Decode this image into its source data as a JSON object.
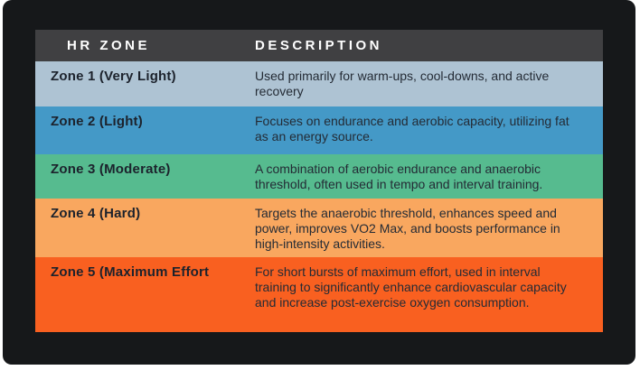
{
  "page": {
    "background_color": "#ffffff",
    "card_color": "#16181a"
  },
  "chart_data": {
    "type": "table",
    "title": "",
    "columns": [
      {
        "label": "HR ZONE"
      },
      {
        "label": "DESCRIPTION"
      }
    ],
    "header": {
      "background": "#404042",
      "text_color": "#ffffff"
    },
    "text_color": "#242b35",
    "rows": [
      {
        "zone": "Zone 1 (Very Light)",
        "description": "Used primarily for warm-ups, cool-downs, and active recovery",
        "color": "#aec3d3"
      },
      {
        "zone": "Zone 2 (Light)",
        "description": "Focuses on endurance and aerobic capacity, utilizing fat as an energy source.",
        "color": "#4499c7"
      },
      {
        "zone": "Zone 3 (Moderate)",
        "description": "A combination of aerobic endurance and anaerobic threshold, often used in tempo and interval training.",
        "color": "#56bb8f"
      },
      {
        "zone": "Zone 4 (Hard)",
        "description": "Targets the anaerobic threshold, enhances speed and power, improves VO2 Max, and boosts performance in high-intensity activities.",
        "color": "#f9a75f"
      },
      {
        "zone": "Zone 5 (Maximum Effort",
        "description": "For short bursts of maximum effort, used in interval training to significantly enhance cardiovascular capacity and increase post-exercise oxygen consumption.",
        "color": "#f96020"
      }
    ]
  }
}
